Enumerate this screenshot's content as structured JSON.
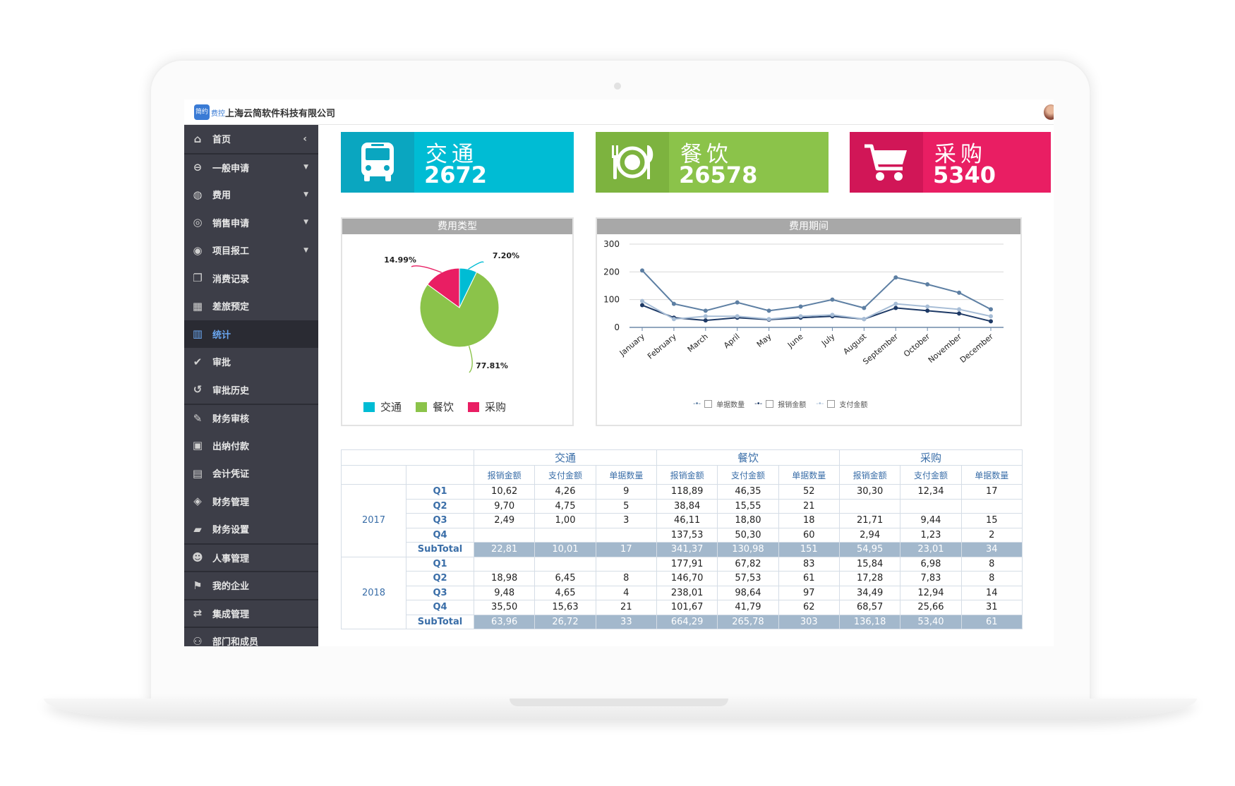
{
  "app": {
    "logo_text": "简约",
    "logo_tag": "费控",
    "company": "上海云简软件科技有限公司"
  },
  "sidebar": {
    "items": [
      {
        "icon": "home-icon",
        "label": "首页",
        "collapse": "‹"
      },
      {
        "icon": "minus-circle-icon",
        "label": "一般申请",
        "caret": "▼"
      },
      {
        "icon": "money-icon",
        "label": "费用",
        "caret": "▼"
      },
      {
        "icon": "sales-icon",
        "label": "销售申请",
        "caret": "▼"
      },
      {
        "icon": "project-icon",
        "label": "项目报工",
        "caret": "▼"
      },
      {
        "icon": "copy-icon",
        "label": "消费记录"
      },
      {
        "icon": "briefcase-icon",
        "label": "差旅预定"
      },
      {
        "icon": "bar-chart-icon",
        "label": "统计"
      },
      {
        "icon": "check-circle-icon",
        "label": "审批"
      },
      {
        "icon": "history-icon",
        "label": "审批历史"
      },
      {
        "icon": "edit-icon",
        "label": "财务审核"
      },
      {
        "icon": "cash-icon",
        "label": "出纳付款"
      },
      {
        "icon": "calculator-icon",
        "label": "会计凭证"
      },
      {
        "icon": "finance-icon",
        "label": "财务管理"
      },
      {
        "icon": "book-icon",
        "label": "财务设置"
      },
      {
        "icon": "users-icon",
        "label": "人事管理"
      },
      {
        "icon": "flag-icon",
        "label": "我的企业"
      },
      {
        "icon": "exchange-icon",
        "label": "集成管理"
      },
      {
        "icon": "org-icon",
        "label": "部门和成员"
      }
    ]
  },
  "tiles": [
    {
      "title": "交通",
      "value": "2672",
      "color": "#00bcd4",
      "icon": "bus-icon"
    },
    {
      "title": "餐饮",
      "value": "26578",
      "color": "#8bc34a",
      "icon": "dining-icon"
    },
    {
      "title": "采购",
      "value": "5340",
      "color": "#e91e63",
      "icon": "cart-icon"
    }
  ],
  "pie_panel": {
    "title": "费用类型"
  },
  "line_panel": {
    "title": "费用期间"
  },
  "chart_data": [
    {
      "type": "pie",
      "categories": [
        "交通",
        "餐饮",
        "采购"
      ],
      "values": [
        7.2,
        77.81,
        14.99
      ],
      "labels": [
        "7.20%",
        "77.81%",
        "14.99%"
      ],
      "colors": [
        "#00bcd4",
        "#8bc34a",
        "#e91e63"
      ],
      "legend": "bottom"
    },
    {
      "type": "line",
      "categories": [
        "January",
        "February",
        "March",
        "April",
        "May",
        "June",
        "July",
        "August",
        "September",
        "October",
        "November",
        "December"
      ],
      "ylim": [
        0,
        300
      ],
      "yticks": [
        "0",
        "100",
        "200",
        "300"
      ],
      "grid": true,
      "legend": "bottom",
      "series": [
        {
          "name": "单据数量",
          "color": "#5d7fa3",
          "values": [
            205,
            85,
            60,
            90,
            60,
            75,
            100,
            70,
            180,
            155,
            125,
            65
          ]
        },
        {
          "name": "报销金额",
          "color": "#1e3a66",
          "values": [
            80,
            35,
            25,
            35,
            28,
            35,
            40,
            30,
            70,
            60,
            50,
            22
          ]
        },
        {
          "name": "支付金额",
          "color": "#a7bdd6",
          "values": [
            95,
            30,
            40,
            40,
            30,
            40,
            45,
            30,
            85,
            75,
            65,
            40
          ]
        }
      ]
    }
  ],
  "table": {
    "groups": [
      "交通",
      "餐饮",
      "采购"
    ],
    "subheaders": [
      "报销金额",
      "支付金额",
      "单据数量"
    ],
    "years": [
      {
        "year": "2017",
        "rows": [
          {
            "q": "Q1",
            "cells": [
              "10,62",
              "4,26",
              "9",
              "118,89",
              "46,35",
              "52",
              "30,30",
              "12,34",
              "17"
            ]
          },
          {
            "q": "Q2",
            "cells": [
              "9,70",
              "4,75",
              "5",
              "38,84",
              "15,55",
              "21",
              "",
              "",
              ""
            ]
          },
          {
            "q": "Q3",
            "cells": [
              "2,49",
              "1,00",
              "3",
              "46,11",
              "18,80",
              "18",
              "21,71",
              "9,44",
              "15"
            ]
          },
          {
            "q": "Q4",
            "cells": [
              "",
              "",
              "",
              "137,53",
              "50,30",
              "60",
              "2,94",
              "1,23",
              "2"
            ]
          }
        ],
        "subtotal_label": "SubTotal",
        "subtotal": [
          "22,81",
          "10,01",
          "17",
          "341,37",
          "130,98",
          "151",
          "54,95",
          "23,01",
          "34"
        ]
      },
      {
        "year": "2018",
        "rows": [
          {
            "q": "Q1",
            "cells": [
              "",
              "",
              "",
              "177,91",
              "67,82",
              "83",
              "15,84",
              "6,98",
              "8"
            ]
          },
          {
            "q": "Q2",
            "cells": [
              "18,98",
              "6,45",
              "8",
              "146,70",
              "57,53",
              "61",
              "17,28",
              "7,83",
              "8"
            ]
          },
          {
            "q": "Q3",
            "cells": [
              "9,48",
              "4,65",
              "4",
              "238,01",
              "98,64",
              "97",
              "34,49",
              "12,94",
              "14"
            ]
          },
          {
            "q": "Q4",
            "cells": [
              "35,50",
              "15,63",
              "21",
              "101,67",
              "41,79",
              "62",
              "68,57",
              "25,66",
              "31"
            ]
          }
        ],
        "subtotal_label": "SubTotal",
        "subtotal": [
          "63,96",
          "26,72",
          "33",
          "664,29",
          "265,78",
          "303",
          "136,18",
          "53,40",
          "61"
        ]
      }
    ]
  }
}
